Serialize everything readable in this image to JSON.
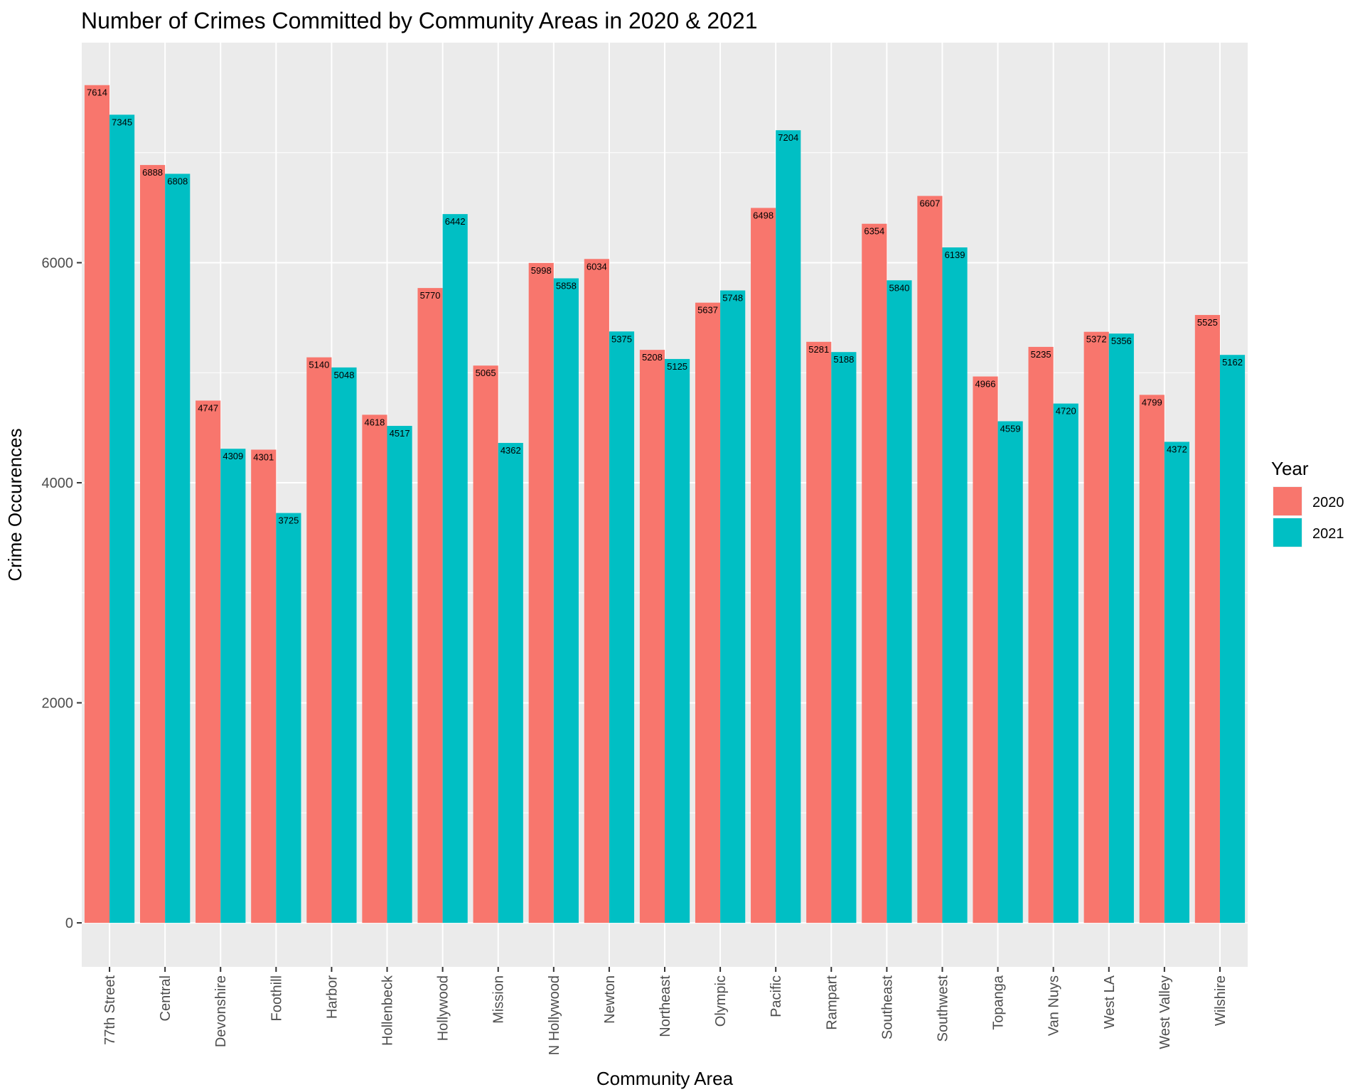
{
  "chart_data": {
    "type": "bar",
    "title": "Number of Crimes Committed by Community Areas in 2020 & 2021",
    "xlabel": "Community Area",
    "ylabel": "Crime Occurences",
    "categories": [
      "77th Street",
      "Central",
      "Devonshire",
      "Foothill",
      "Harbor",
      "Hollenbeck",
      "Hollywood",
      "Mission",
      "N Hollywood",
      "Newton",
      "Northeast",
      "Olympic",
      "Pacific",
      "Rampart",
      "Southeast",
      "Southwest",
      "Topanga",
      "Van Nuys",
      "West LA",
      "West Valley",
      "Wilshire"
    ],
    "series": [
      {
        "name": "2020",
        "color": "#F8766D",
        "values": [
          7614,
          6888,
          4747,
          4301,
          5140,
          4618,
          5770,
          5065,
          5998,
          6034,
          5208,
          5637,
          6498,
          5281,
          6354,
          6607,
          4966,
          5235,
          5372,
          4799,
          5525
        ]
      },
      {
        "name": "2021",
        "color": "#00BFC4",
        "values": [
          7345,
          6808,
          4309,
          3725,
          5048,
          4517,
          6442,
          4362,
          5858,
          5375,
          5125,
          5748,
          7204,
          5188,
          5840,
          6139,
          4559,
          4720,
          5356,
          4372,
          5162
        ]
      }
    ],
    "ylim": [
      -400,
      8000
    ],
    "yticks": [
      0,
      2000,
      4000,
      6000
    ],
    "legend_title": "Year",
    "legend_position": "right",
    "grid": true,
    "panel_background": "#EBEBEB"
  }
}
